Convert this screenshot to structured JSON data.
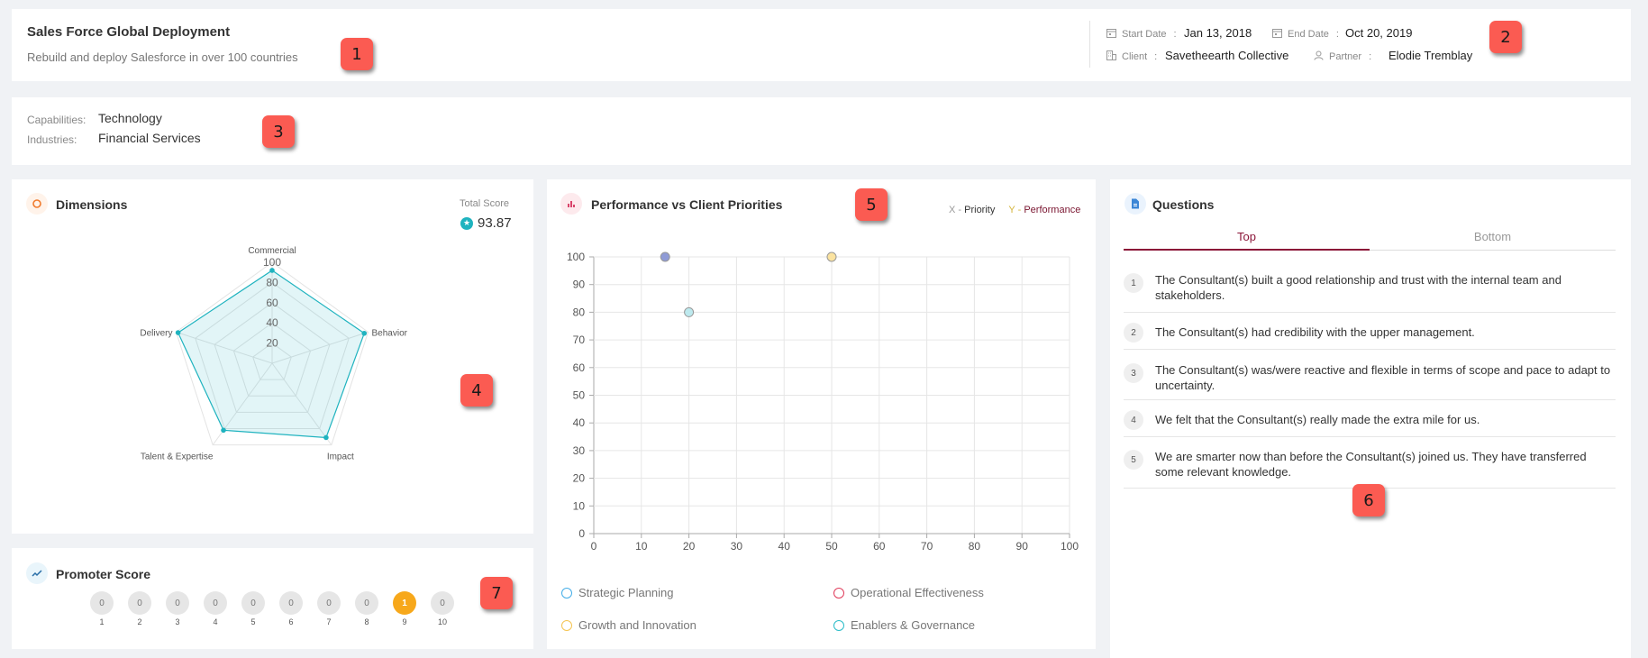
{
  "header": {
    "title": "Sales Force Global Deployment",
    "subtitle": "Rebuild and deploy Salesforce in over 100 countries",
    "start_date_label": "Start Date",
    "start_date": "Jan 13, 2018",
    "end_date_label": "End Date",
    "end_date": "Oct 20, 2019",
    "client_label": "Client",
    "client": "Savetheearth Collective",
    "partner_label": "Partner",
    "partner": "Elodie Tremblay",
    "separator": ":"
  },
  "tags": {
    "capabilities_label": "Capabilities:",
    "capabilities": "Technology",
    "industries_label": "Industries:",
    "industries": "Financial Services"
  },
  "dimensions": {
    "title": "Dimensions",
    "total_score_label": "Total Score",
    "total_score": "93.87"
  },
  "performance": {
    "title": "Performance vs Client Priorities",
    "x_legend_prefix": "X -",
    "x_legend_label": "Priority",
    "y_legend_prefix": "Y -",
    "y_legend_label": "Performance"
  },
  "chart_data": [
    {
      "type": "radar",
      "axes": [
        "Commercial",
        "Behavior",
        "Impact",
        "Talent & Expertise",
        "Delivery"
      ],
      "values": [
        92,
        96,
        91,
        82,
        98
      ],
      "ticks": [
        "20",
        "40",
        "60",
        "80",
        "100"
      ],
      "range": [
        0,
        100
      ]
    },
    {
      "type": "scatter",
      "xlim": [
        0,
        100
      ],
      "ylim": [
        0,
        100
      ],
      "xticks": [
        "0",
        "10",
        "20",
        "30",
        "40",
        "50",
        "60",
        "70",
        "80",
        "90",
        "100"
      ],
      "yticks": [
        "0",
        "10",
        "20",
        "30",
        "40",
        "50",
        "60",
        "70",
        "80",
        "90",
        "100"
      ],
      "points": [
        {
          "x": 15,
          "y": 100,
          "color": "#8f9bd6"
        },
        {
          "x": 50,
          "y": 100,
          "color": "#fbe3a0"
        },
        {
          "x": 20,
          "y": 80,
          "color": "#bde9ee"
        }
      ],
      "legend": [
        {
          "name": "Strategic Planning",
          "color": "#45aee8"
        },
        {
          "name": "Operational Effectiveness",
          "color": "#e03c5b"
        },
        {
          "name": "Growth and Innovation",
          "color": "#f5c451"
        },
        {
          "name": "Enablers & Governance",
          "color": "#2bbcc8"
        }
      ]
    }
  ],
  "questions": {
    "title": "Questions",
    "tab_top": "Top",
    "tab_bottom": "Bottom",
    "items": [
      {
        "num": "1",
        "text": "The Consultant(s) built a good relationship and trust with the internal team and stakeholders."
      },
      {
        "num": "2",
        "text": "The Consultant(s) had credibility with the upper management."
      },
      {
        "num": "3",
        "text": "The Consultant(s) was/were reactive and flexible in terms of scope and pace to adapt to uncertainty."
      },
      {
        "num": "4",
        "text": "We felt that the Consultant(s) really made the extra mile for us."
      },
      {
        "num": "5",
        "text": "We are smarter now than before the Consultant(s) joined us. They have transferred some relevant knowledge."
      }
    ]
  },
  "promoter": {
    "title": "Promoter Score",
    "scores": [
      {
        "count": "0",
        "label": "1"
      },
      {
        "count": "0",
        "label": "2"
      },
      {
        "count": "0",
        "label": "3"
      },
      {
        "count": "0",
        "label": "4"
      },
      {
        "count": "0",
        "label": "5"
      },
      {
        "count": "0",
        "label": "6"
      },
      {
        "count": "0",
        "label": "7"
      },
      {
        "count": "0",
        "label": "8"
      },
      {
        "count": "1",
        "label": "9",
        "active": true
      },
      {
        "count": "0",
        "label": "10"
      }
    ]
  },
  "markers": [
    "1",
    "2",
    "3",
    "4",
    "5",
    "6",
    "7"
  ],
  "colors": {
    "accent": "#8b1538",
    "radar": "#1fb3bf",
    "promoter_active": "#f7a81b",
    "marker": "#fb5b52"
  }
}
